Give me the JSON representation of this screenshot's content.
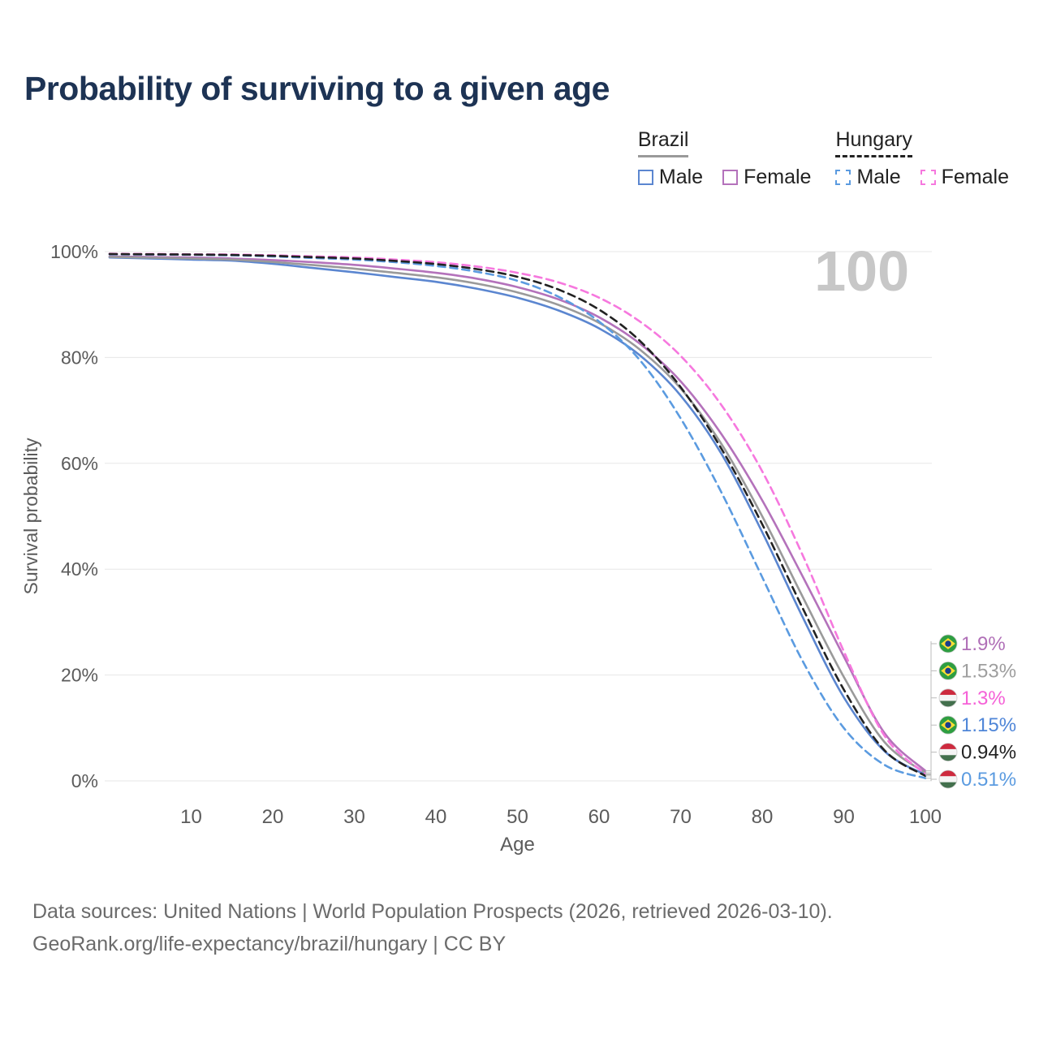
{
  "title": "Probability of surviving to a given age",
  "watermark": "100",
  "legend": {
    "groups": [
      {
        "label": "Brazil",
        "dash": false,
        "line_color": "#9a9a9a",
        "items": [
          {
            "label": "Male",
            "dash": false,
            "color": "#5b86d0"
          },
          {
            "label": "Female",
            "dash": false,
            "color": "#b472bb"
          }
        ]
      },
      {
        "label": "Hungary",
        "dash": true,
        "line_color": "#222222",
        "items": [
          {
            "label": "Male",
            "dash": true,
            "color": "#5b9be0"
          },
          {
            "label": "Female",
            "dash": true,
            "color": "#f678de"
          }
        ]
      }
    ]
  },
  "chart_data": {
    "type": "line",
    "title": "Probability of surviving to a given age",
    "xlabel": "Age",
    "ylabel": "Survival probability",
    "xlim": [
      0,
      100
    ],
    "ylim": [
      0,
      100
    ],
    "x_ticks": [
      10,
      20,
      30,
      40,
      50,
      60,
      70,
      80,
      90,
      100
    ],
    "y_ticks": [
      0,
      20,
      40,
      60,
      80,
      100
    ],
    "y_tick_suffix": "%",
    "grid": true,
    "legend_position": "top-right",
    "ages": [
      0,
      5,
      10,
      15,
      20,
      25,
      30,
      35,
      40,
      45,
      50,
      55,
      60,
      65,
      70,
      75,
      80,
      85,
      90,
      95,
      100
    ],
    "series": [
      {
        "id": "brazil-male",
        "name": "Brazil Male",
        "color": "#5b86d0",
        "dash": false,
        "values": [
          98.9,
          98.7,
          98.5,
          98.3,
          97.7,
          96.9,
          96.1,
          95.2,
          94.3,
          93.0,
          91.3,
          88.9,
          85.5,
          80.4,
          72.8,
          61.8,
          47.0,
          30.8,
          15.8,
          5.6,
          1.15
        ]
      },
      {
        "id": "brazil-female",
        "name": "Brazil Female",
        "color": "#b472bb",
        "dash": false,
        "values": [
          99.1,
          99.0,
          98.9,
          98.7,
          98.4,
          98.0,
          97.5,
          96.8,
          96.0,
          94.9,
          93.3,
          91.0,
          87.6,
          82.6,
          75.5,
          65.5,
          53.0,
          38.5,
          23.5,
          9.0,
          1.9
        ]
      },
      {
        "id": "brazil-both",
        "name": "Brazil",
        "color": "#9a9a9a",
        "dash": false,
        "values": [
          99.0,
          98.85,
          98.7,
          98.5,
          98.05,
          97.45,
          96.8,
          96.0,
          95.15,
          93.95,
          92.3,
          89.95,
          86.55,
          81.5,
          74.15,
          63.65,
          50.0,
          34.65,
          19.65,
          7.3,
          1.53
        ]
      },
      {
        "id": "hungary-male",
        "name": "Hungary Male",
        "color": "#5b9be0",
        "dash": true,
        "values": [
          99.5,
          99.45,
          99.4,
          99.3,
          99.1,
          98.8,
          98.5,
          98.0,
          97.3,
          96.2,
          94.5,
          91.5,
          86.8,
          79.5,
          68.5,
          54.5,
          38.5,
          22.5,
          10.0,
          3.0,
          0.51
        ]
      },
      {
        "id": "hungary-female",
        "name": "Hungary Female",
        "color": "#f678de",
        "dash": true,
        "values": [
          99.6,
          99.55,
          99.5,
          99.45,
          99.3,
          99.1,
          98.9,
          98.5,
          98.0,
          97.2,
          96.0,
          94.2,
          91.3,
          86.8,
          80.3,
          71.0,
          58.5,
          42.5,
          24.5,
          8.5,
          1.3
        ]
      },
      {
        "id": "hungary-both",
        "name": "Hungary",
        "color": "#222222",
        "dash": true,
        "values": [
          99.55,
          99.5,
          99.45,
          99.37,
          99.2,
          98.95,
          98.7,
          98.25,
          97.65,
          96.7,
          95.25,
          92.85,
          89.05,
          83.15,
          74.4,
          62.75,
          48.5,
          32.5,
          17.25,
          5.75,
          0.94
        ]
      }
    ]
  },
  "end_labels": [
    {
      "text": "1.9%",
      "value": 1.9,
      "color": "#b06fb7",
      "flag": "brazil",
      "series": "brazil-female"
    },
    {
      "text": "1.53%",
      "value": 1.53,
      "color": "#9e9e9e",
      "flag": "brazil",
      "series": "brazil-both"
    },
    {
      "text": "1.3%",
      "value": 1.3,
      "color": "#f561d7",
      "flag": "hungary",
      "series": "hungary-female"
    },
    {
      "text": "1.15%",
      "value": 1.15,
      "color": "#4f86d8",
      "flag": "brazil",
      "series": "brazil-male"
    },
    {
      "text": "0.94%",
      "value": 0.94,
      "color": "#222222",
      "flag": "hungary",
      "series": "hungary-both"
    },
    {
      "text": "0.51%",
      "value": 0.51,
      "color": "#5b9be0",
      "flag": "hungary",
      "series": "hungary-male"
    }
  ],
  "footer": {
    "line1": "Data sources: United Nations | World Population Prospects (2026, retrieved 2026-03-10).",
    "line2": "GeoRank.org/life-expectancy/brazil/hungary | CC BY"
  }
}
